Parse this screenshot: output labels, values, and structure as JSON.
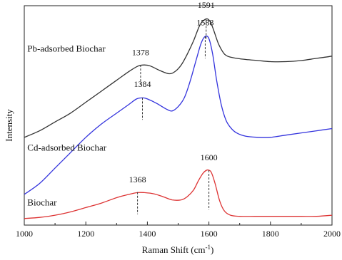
{
  "chart_data": {
    "type": "line",
    "title": "",
    "xlabel": "Raman Shift (cm",
    "xlabel_sup": "-1",
    "xlabel_close": ")",
    "ylabel": "Intensity",
    "xlim": [
      1000,
      2000
    ],
    "ylim": [
      0,
      100
    ],
    "xticks": [
      1000,
      1200,
      1400,
      1600,
      1800,
      2000
    ],
    "grid": false,
    "series": [
      {
        "name": "Pb-adsorbed Biochar",
        "color": "#333333",
        "x": [
          1000,
          1050,
          1100,
          1150,
          1200,
          1250,
          1300,
          1340,
          1370,
          1390,
          1410,
          1440,
          1470,
          1490,
          1510,
          1530,
          1550,
          1570,
          1585,
          1595,
          1605,
          1615,
          1630,
          1645,
          1660,
          1690,
          1720,
          1760,
          1800,
          1850,
          1900,
          1950,
          2000
        ],
        "y": [
          40,
          43,
          47,
          51,
          56,
          61,
          66,
          70,
          72.5,
          73,
          72.5,
          70.5,
          69,
          70,
          73,
          78,
          84,
          91,
          93.5,
          94,
          92.5,
          89,
          83,
          79,
          77,
          76,
          75.5,
          75,
          74.5,
          74.5,
          75,
          76,
          77
        ]
      },
      {
        "name": "Cd-adsorbed Biochar",
        "color": "#3333dd",
        "x": [
          1000,
          1050,
          1100,
          1150,
          1200,
          1250,
          1300,
          1340,
          1365,
          1385,
          1400,
          1430,
          1460,
          1480,
          1500,
          1520,
          1540,
          1560,
          1575,
          1588,
          1600,
          1612,
          1625,
          1640,
          1655,
          1670,
          1690,
          1720,
          1760,
          1800,
          1850,
          1900,
          1950,
          2000
        ],
        "y": [
          14,
          19,
          26,
          33,
          40,
          46,
          51,
          55,
          57.5,
          58,
          57.5,
          55.5,
          53,
          52,
          54,
          58,
          66,
          76,
          83,
          86,
          85,
          78,
          66,
          55,
          48,
          44.5,
          42,
          40.5,
          40,
          40,
          41,
          42,
          43,
          44
        ]
      },
      {
        "name": "Biochar",
        "color": "#dd3333",
        "x": [
          1000,
          1050,
          1100,
          1150,
          1200,
          1250,
          1300,
          1340,
          1368,
          1390,
          1420,
          1450,
          1480,
          1510,
          1530,
          1550,
          1565,
          1580,
          1592,
          1600,
          1608,
          1620,
          1635,
          1650,
          1670,
          1700,
          1750,
          1800,
          1850,
          1900,
          1950,
          2000
        ],
        "y": [
          3,
          3.5,
          4.5,
          6,
          8,
          10,
          12.5,
          14,
          14.8,
          14.8,
          14.3,
          13,
          11.5,
          11.5,
          13,
          16,
          20,
          23.5,
          25,
          25,
          24,
          19,
          11,
          6.5,
          4.5,
          4,
          4,
          4,
          4,
          4,
          4,
          4.5
        ]
      }
    ],
    "labels": [
      {
        "text": "Pb-adsorbed Biochar",
        "x": 1010,
        "y": 79
      },
      {
        "text": "Cd-adsorbed Biochar",
        "x": 1010,
        "y": 34
      },
      {
        "text": "Biochar",
        "x": 1010,
        "y": 9
      }
    ],
    "annotations": [
      {
        "text": "1591",
        "x": 1591,
        "y_top": 94,
        "y_bottom": 85,
        "label_y": 99,
        "color": "#333333"
      },
      {
        "text": "1588",
        "x": 1588,
        "y_top": 86,
        "y_bottom": 76,
        "label_y": 91,
        "color": "#333333"
      },
      {
        "text": "1378",
        "x": 1378,
        "y_top": 73,
        "y_bottom": 64,
        "label_y": 77.5,
        "color": "#333333"
      },
      {
        "text": "1384",
        "x": 1384,
        "y_top": 58,
        "y_bottom": 48,
        "label_y": 63,
        "color": "#333333"
      },
      {
        "text": "1368",
        "x": 1368,
        "y_top": 15,
        "y_bottom": 5,
        "label_y": 19.5,
        "color": "#333333"
      },
      {
        "text": "1600",
        "x": 1600,
        "y_top": 25,
        "y_bottom": 7,
        "label_y": 29.5,
        "color": "#333333"
      }
    ]
  }
}
